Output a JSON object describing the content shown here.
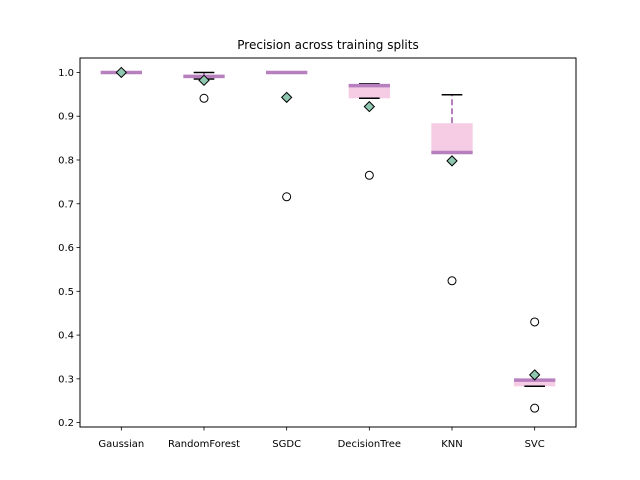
{
  "chart_data": {
    "type": "box",
    "title": "Precision across training splits",
    "xlabel": "",
    "ylabel": "",
    "ylim": [
      0.19,
      1.033
    ],
    "yticks": [
      0.2,
      0.3,
      0.4,
      0.5,
      0.6,
      0.7,
      0.8,
      0.9,
      1.0
    ],
    "ytick_labels": [
      "0.2",
      "0.3",
      "0.4",
      "0.5",
      "0.6",
      "0.7",
      "0.8",
      "0.9",
      "1.0"
    ],
    "grid": false,
    "categories": [
      "Gaussian",
      "RandomForest",
      "SGDC",
      "DecisionTree",
      "KNN",
      "SVC"
    ],
    "boxes": [
      {
        "label": "Gaussian",
        "q1": 1.0,
        "median": 1.0,
        "q3": 1.0,
        "whisker_low": 1.0,
        "whisker_high": 1.0,
        "mean": 1.0,
        "fliers": []
      },
      {
        "label": "RandomForest",
        "q1": 0.987,
        "median": 0.991,
        "q3": 0.994,
        "whisker_low": 0.985,
        "whisker_high": 1.0,
        "mean": 0.982,
        "fliers": [
          0.941
        ]
      },
      {
        "label": "SGDC",
        "q1": 1.0,
        "median": 1.0,
        "q3": 1.0,
        "whisker_low": 1.0,
        "whisker_high": 1.0,
        "mean": 0.943,
        "fliers": [
          0.716
        ]
      },
      {
        "label": "DecisionTree",
        "q1": 0.941,
        "median": 0.97,
        "q3": 0.972,
        "whisker_low": 0.941,
        "whisker_high": 0.974,
        "mean": 0.922,
        "fliers": [
          0.765
        ]
      },
      {
        "label": "KNN",
        "q1": 0.817,
        "median": 0.817,
        "q3": 0.884,
        "whisker_low": 0.817,
        "whisker_high": 0.949,
        "mean": 0.798,
        "fliers": [
          0.524
        ]
      },
      {
        "label": "SVC",
        "q1": 0.283,
        "median": 0.297,
        "q3": 0.299,
        "whisker_low": 0.283,
        "whisker_high": 0.299,
        "mean": 0.309,
        "fliers": [
          0.43,
          0.233
        ]
      }
    ],
    "colors": {
      "box_fill": "#f5cce4",
      "median": "#b87fbf",
      "whisker": "#b87fbf",
      "cap": "#000000",
      "mean_fill": "#8fc7b0",
      "mean_edge": "#000000",
      "flier_edge": "#000000"
    }
  }
}
